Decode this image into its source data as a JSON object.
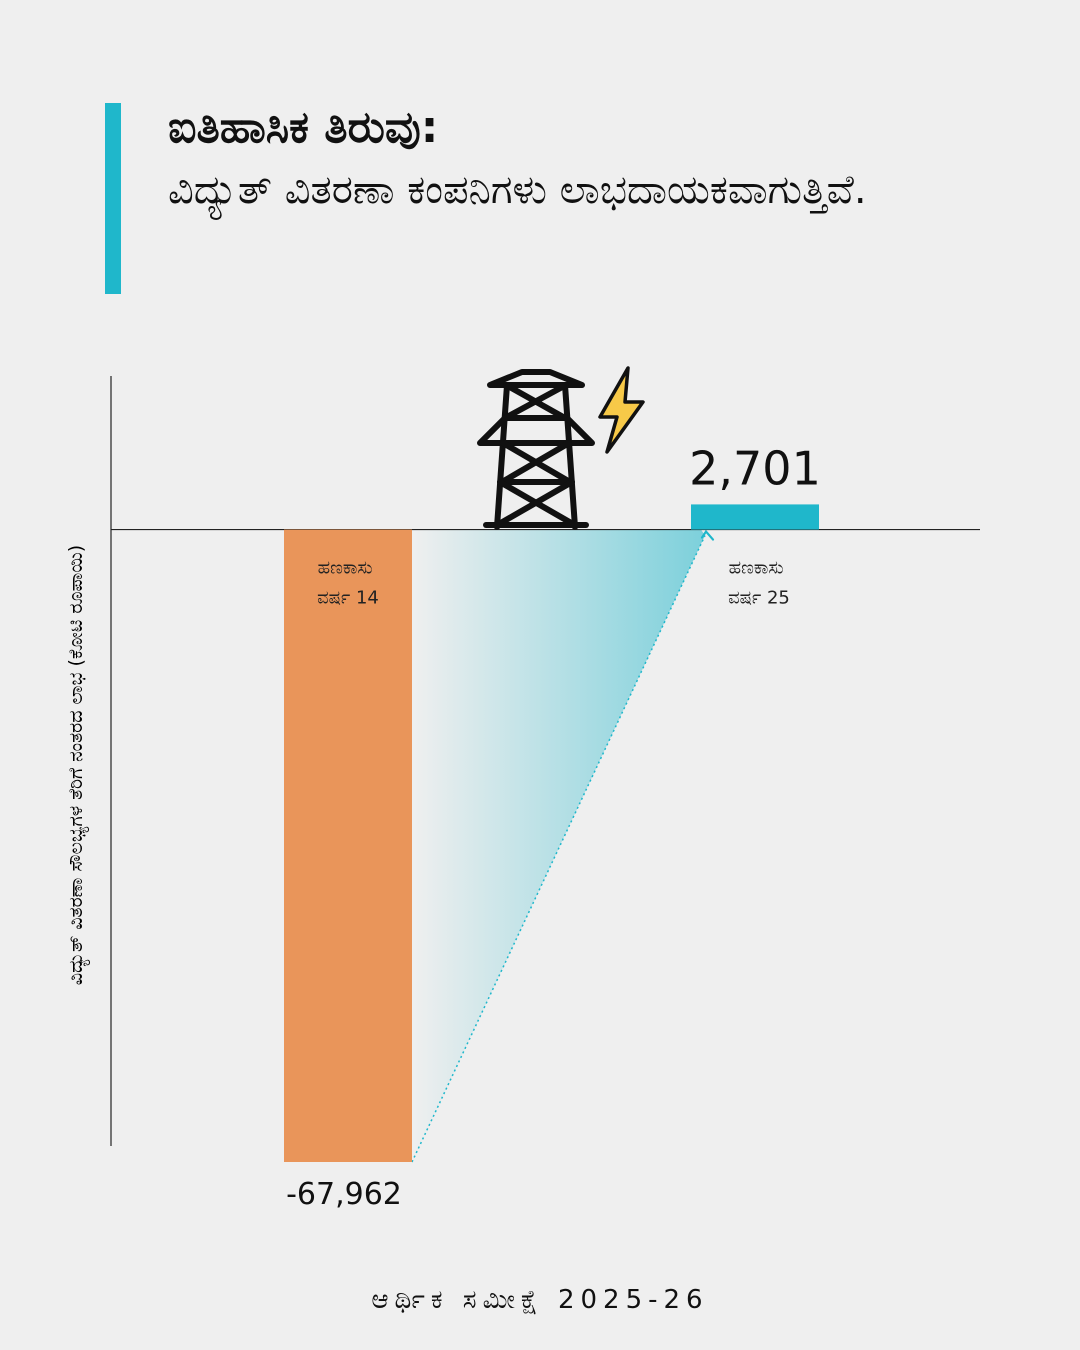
{
  "header": {
    "title": "ಐತಿಹಾಸಿಕ ತಿರುವು:",
    "subtitle": "ವಿದ್ಯುತ್ ವಿತರಣಾ ಕಂಪನಿಗಳು ಲಾಭದಾಯಕವಾಗುತ್ತಿವೆ."
  },
  "footer": {
    "source": "ಆರ್ಥಿಕ ಸಮೀಕ್ಷೆ 2025-26"
  },
  "colors": {
    "accent": "#1fb7cb",
    "negative_bar": "#e9955a",
    "positive_bar": "#1fb7cb",
    "background": "#efefef"
  },
  "icons": [
    "transmission-tower-icon",
    "lightning-bolt-icon"
  ],
  "chart_data": {
    "type": "bar",
    "categories": [
      {
        "line1": "ಹಣಕಾಸು",
        "line2": "ವರ್ಷ 14"
      },
      {
        "line1": "ಹಣಕಾಸು",
        "line2": "ವರ್ಷ 25"
      }
    ],
    "values": [
      -67962,
      2701
    ],
    "value_labels": [
      "-67,962",
      "2,701"
    ],
    "ylabel": "ವಿದ್ಯುತ್ ವಿತರಣಾ ಸೌಲಭ್ಯಗಳ ತೆರಿಗೆ ನಂತರದ ಲಾಭ (ಕೋಟಿ ರೂಪಾಯಿ)",
    "ylim": [
      -67962,
      16500
    ],
    "grid": false,
    "legend": "none"
  }
}
